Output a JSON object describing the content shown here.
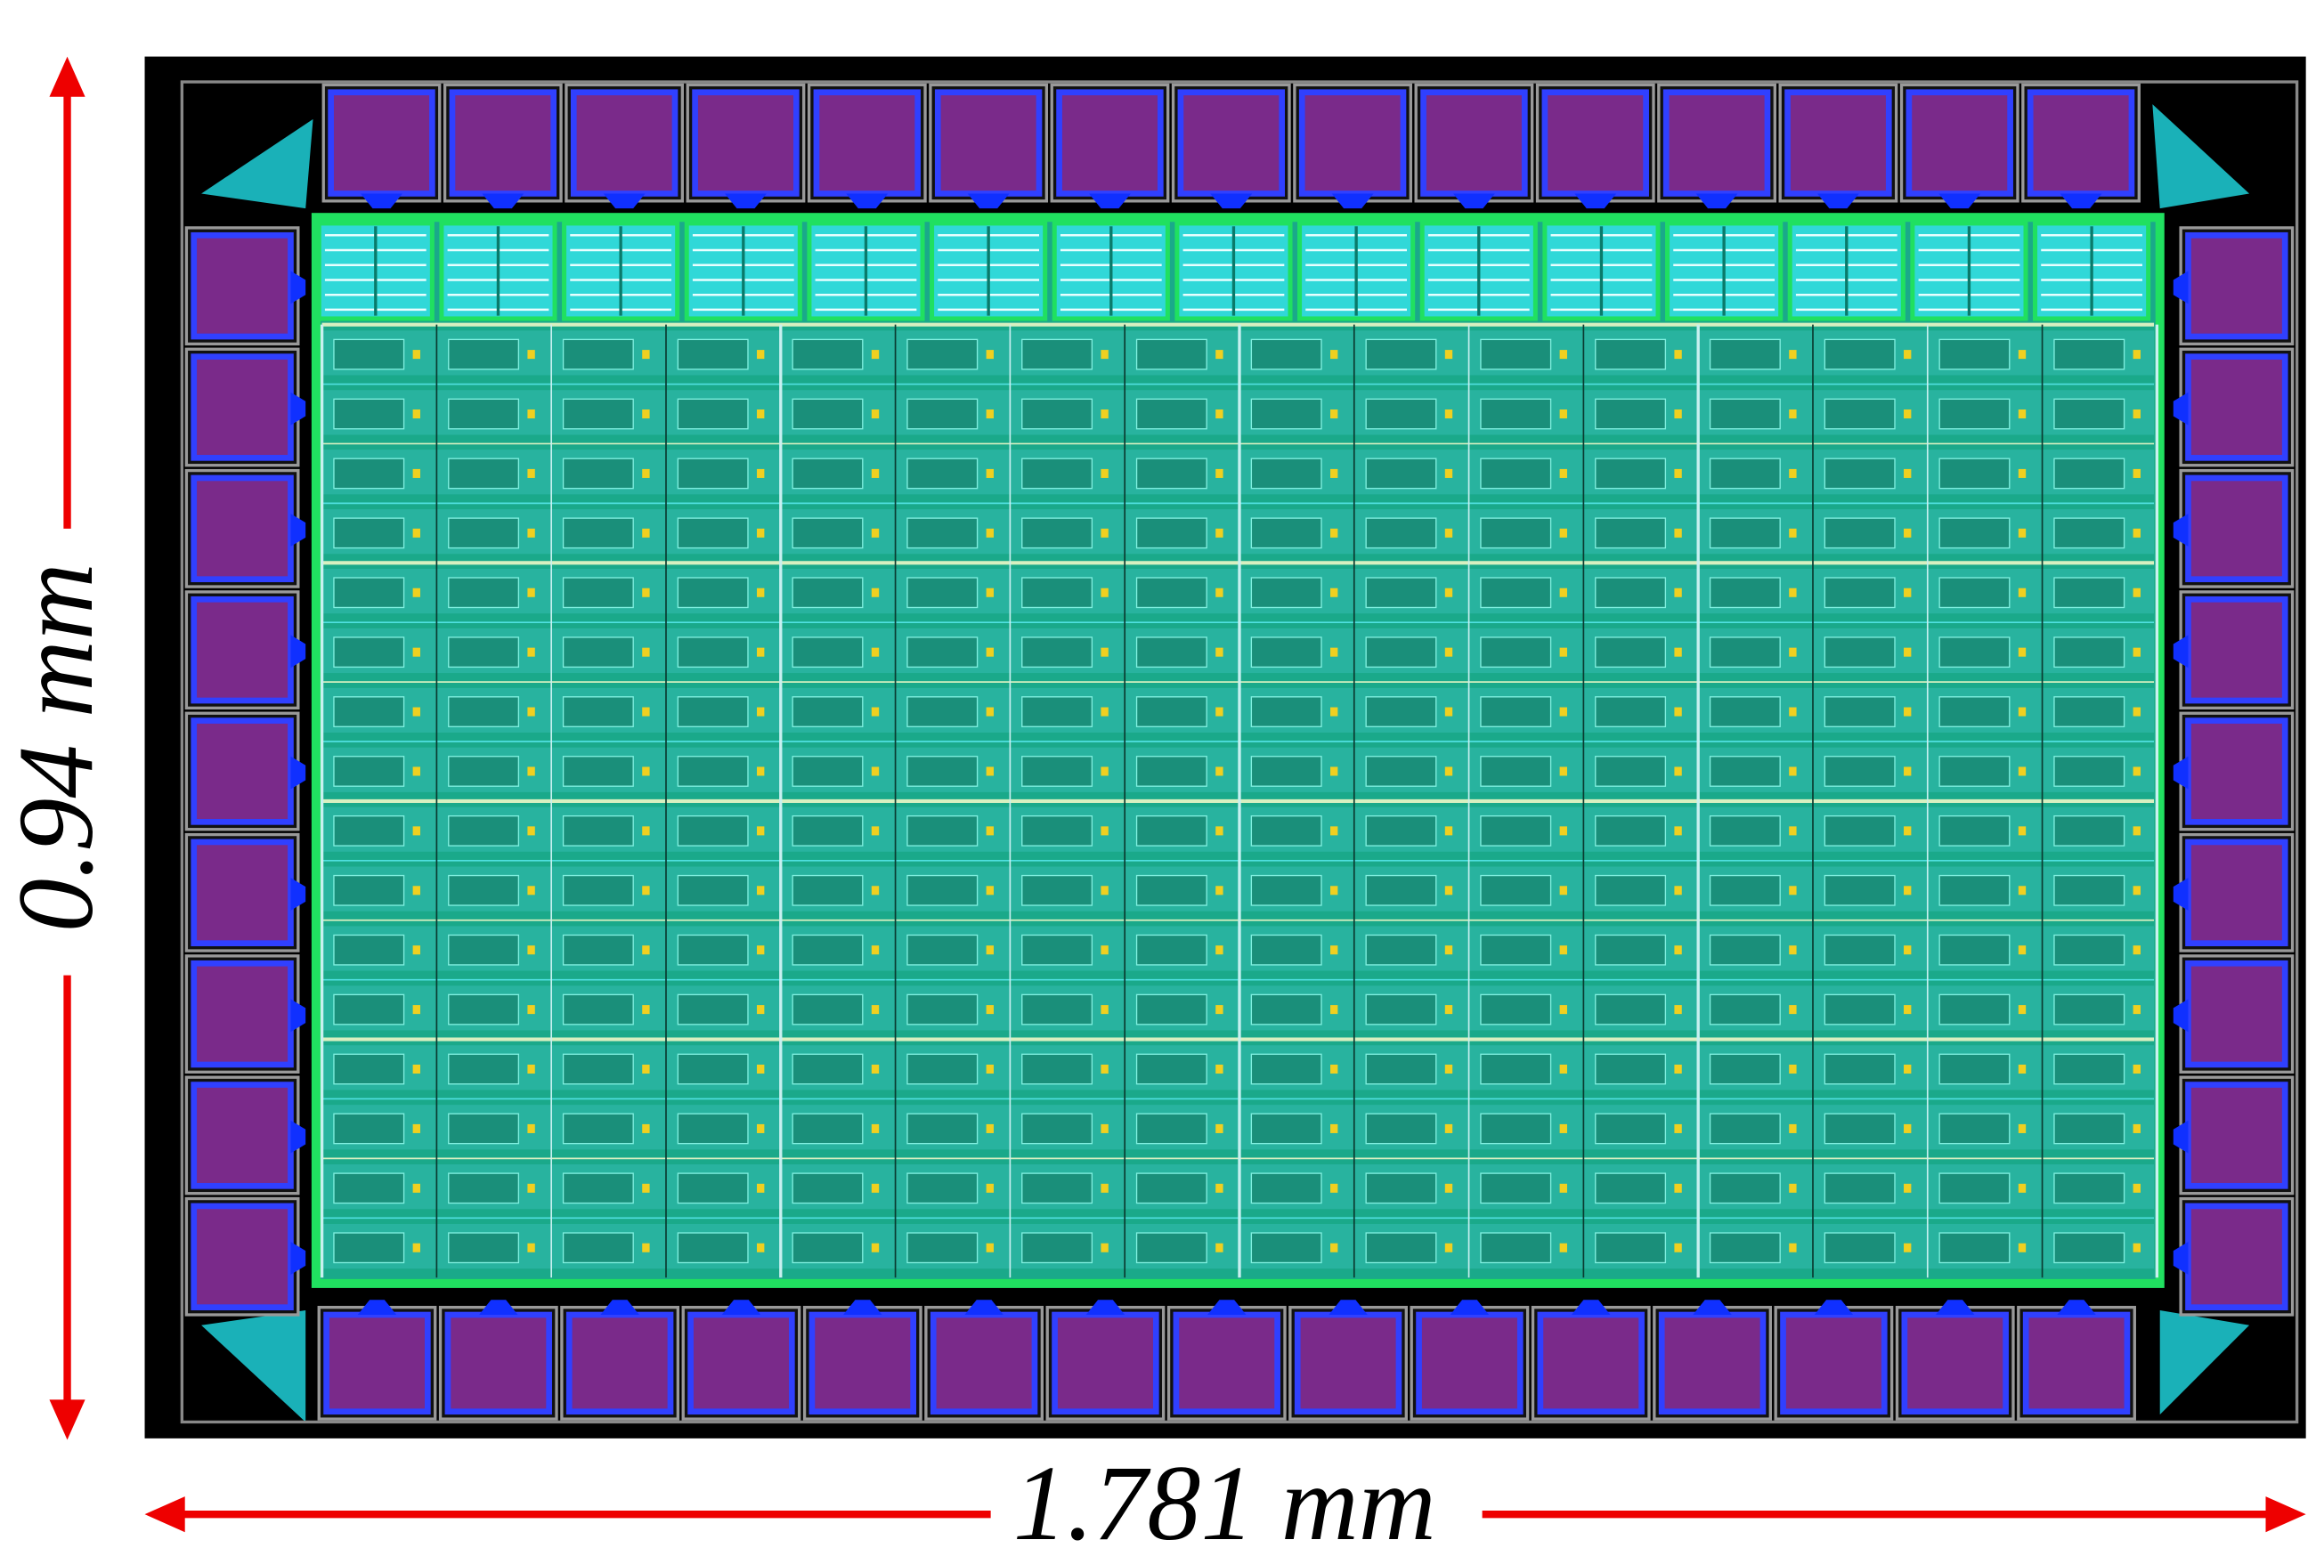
{
  "labels": {
    "height": "0.94 mm",
    "width": "1.781 mm"
  }
}
